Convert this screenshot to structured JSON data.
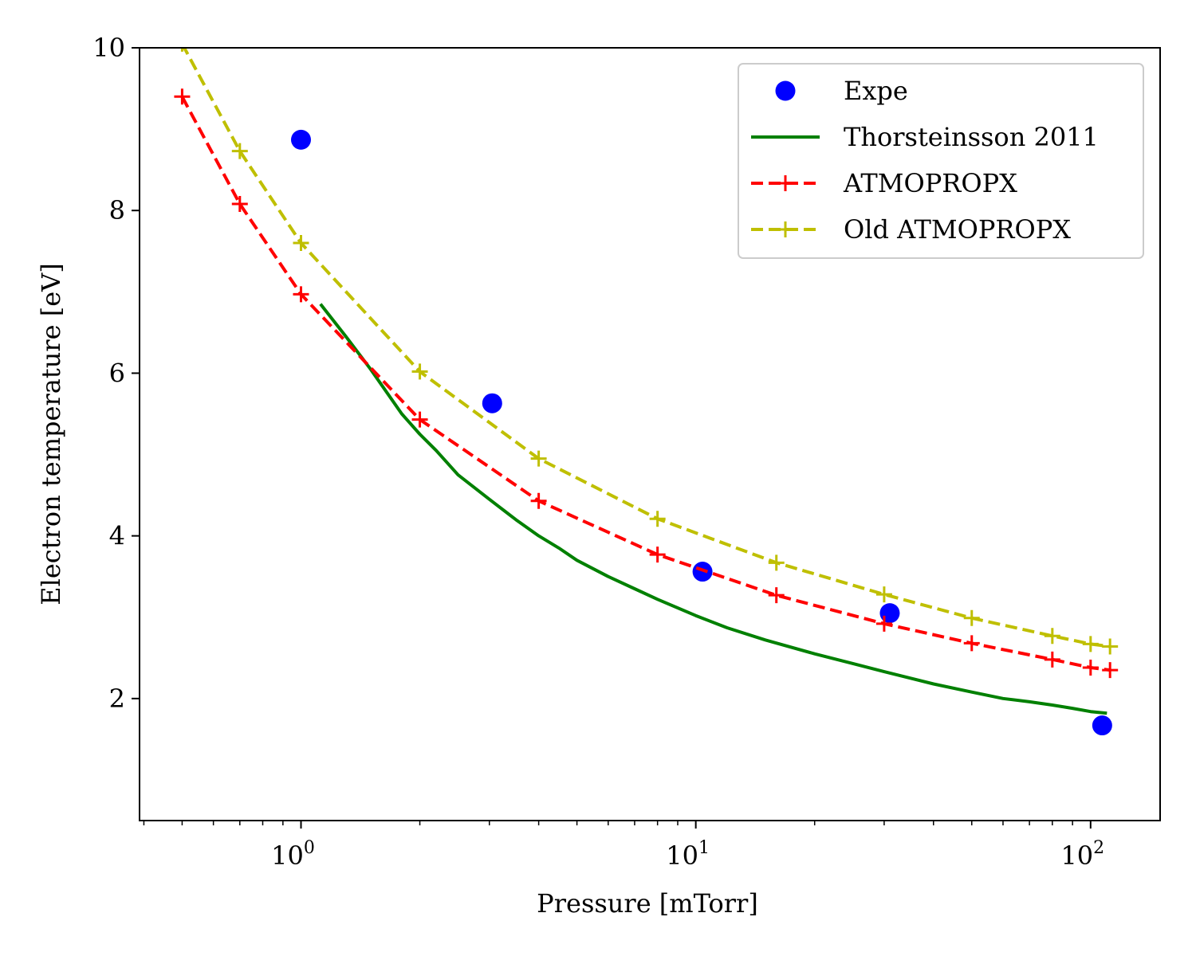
{
  "chart_data": {
    "type": "line",
    "title": "",
    "xlabel": "Pressure [mTorr]",
    "ylabel": "Electron temperature [eV]",
    "xscale": "log",
    "xlim": [
      0.39,
      150
    ],
    "ylim": [
      0.5,
      10
    ],
    "x_tick_values": [
      1,
      10,
      100
    ],
    "x_tick_labels": [
      {
        "base": "10",
        "exp": "0"
      },
      {
        "base": "10",
        "exp": "1"
      },
      {
        "base": "10",
        "exp": "2"
      }
    ],
    "y_ticks": [
      2,
      4,
      6,
      8,
      10
    ],
    "grid": false,
    "legend_position": "top-right",
    "series": [
      {
        "name": "Expe",
        "style": "markers-circle",
        "color": "#0000ff",
        "x": [
          1.0,
          3.05,
          10.4,
          31.0,
          107
        ],
        "y": [
          8.87,
          5.63,
          3.56,
          3.05,
          1.67
        ]
      },
      {
        "name": "Thorsteinsson 2011",
        "style": "solid",
        "color": "#008000",
        "x": [
          1.12,
          1.3,
          1.5,
          1.8,
          2.0,
          2.2,
          2.5,
          3.0,
          3.5,
          4.0,
          4.5,
          5.0,
          6.0,
          7.0,
          8.0,
          10.0,
          12.0,
          15.0,
          20.0,
          25.0,
          30.0,
          40.0,
          50.0,
          60.0,
          70.0,
          80.0,
          90.0,
          100.0,
          110.0
        ],
        "y": [
          6.85,
          6.45,
          6.05,
          5.5,
          5.25,
          5.05,
          4.75,
          4.45,
          4.2,
          4.0,
          3.85,
          3.7,
          3.5,
          3.35,
          3.22,
          3.02,
          2.87,
          2.72,
          2.55,
          2.43,
          2.33,
          2.18,
          2.08,
          2.0,
          1.96,
          1.92,
          1.88,
          1.84,
          1.82
        ]
      },
      {
        "name": "ATMOPROPX",
        "style": "dashed-plus",
        "color": "#ff0000",
        "x": [
          0.5,
          0.7,
          1.0,
          2.0,
          4.0,
          8.0,
          16.0,
          30.0,
          50.0,
          80.0,
          100.0,
          112.0
        ],
        "y": [
          9.4,
          8.08,
          6.97,
          5.43,
          4.43,
          3.77,
          3.27,
          2.92,
          2.68,
          2.48,
          2.38,
          2.35
        ]
      },
      {
        "name": "Old ATMOPROPX",
        "style": "dashed-plus",
        "color": "#bfbf00",
        "x": [
          0.5,
          0.7,
          1.0,
          2.0,
          4.0,
          8.0,
          16.0,
          30.0,
          50.0,
          80.0,
          100.0,
          112.0
        ],
        "y": [
          10.05,
          8.73,
          7.6,
          6.02,
          4.95,
          4.21,
          3.67,
          3.28,
          2.99,
          2.77,
          2.67,
          2.64
        ]
      }
    ]
  }
}
